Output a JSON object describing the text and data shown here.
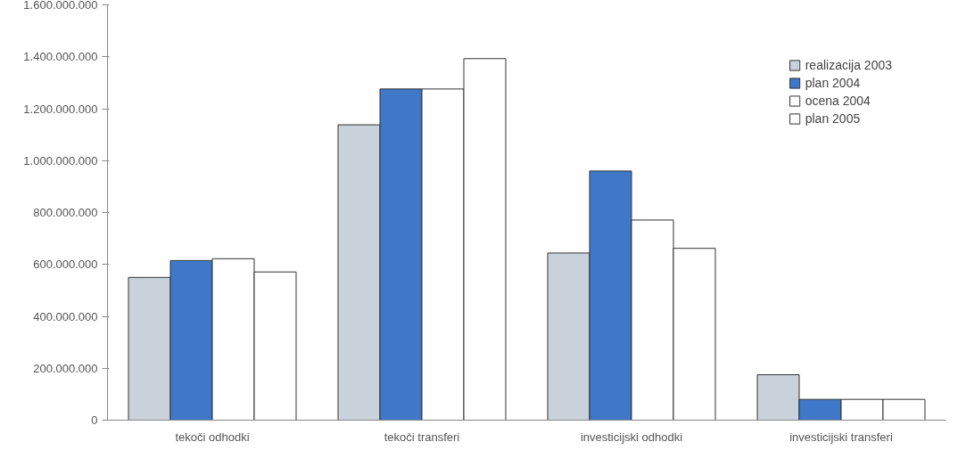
{
  "chart_data": {
    "type": "bar",
    "categories": [
      "tekoči odhodki",
      "tekoči transferi",
      "investicijski odhodki",
      "investicijski transferi"
    ],
    "series": [
      {
        "name": "realizacija 2003",
        "color": "#c9d1da",
        "values": [
          550000000,
          1138000000,
          644000000,
          175000000
        ]
      },
      {
        "name": "plan 2004",
        "color": "#3f78c8",
        "values": [
          615000000,
          1276000000,
          960000000,
          80000000
        ]
      },
      {
        "name": "ocena 2004",
        "color": "#ffffff",
        "values": [
          622000000,
          1276000000,
          771000000,
          80000000
        ]
      },
      {
        "name": "plan 2005",
        "color": "#ffffff",
        "values": [
          571000000,
          1393000000,
          662000000,
          80000000
        ]
      }
    ],
    "ylim": [
      0,
      1600000000
    ],
    "yticks": [
      0,
      {
        "value": 200000000,
        "label": "200.000.000"
      },
      {
        "value": 400000000,
        "label": "400.000.000"
      },
      {
        "value": 600000000,
        "label": "600.000.000"
      },
      {
        "value": 800000000,
        "label": "800.000.000"
      },
      {
        "value": 1000000000,
        "label": "1.000.000.000"
      },
      {
        "value": 1200000000,
        "label": "1.200.000.000"
      },
      {
        "value": 1400000000,
        "label": "1.400.000.000"
      },
      {
        "value": 1600000000,
        "label": "1.600.000.000"
      }
    ],
    "legend": "top right",
    "grid": false
  }
}
